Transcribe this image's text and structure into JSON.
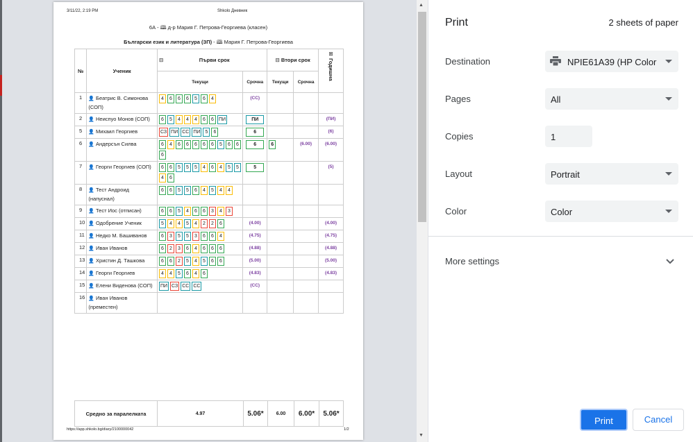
{
  "page": {
    "timestamp": "3/11/22, 2:19 PM",
    "site": "Shkolo Дневник",
    "class_line": "6А - 🕮 д-р Мария Г. Петрова-Георгиева (класен)",
    "subject_bold": "Български език и литература (ЗП)",
    "subject_rest": " - 🕮 Мария Г. Петрова-Георгиева",
    "url": "https://app.shkolo.bg/diary/2100000042",
    "page_no": "1/2"
  },
  "table": {
    "col_no": "№",
    "col_student": "Ученик",
    "term1": "Първи срок",
    "term2": "Втори срок",
    "annual": "Годишна",
    "current": "Текущи",
    "term_grade": "Срочна",
    "current2": "Текущи",
    "term_grade2": "Срочна"
  },
  "rows": [
    {
      "no": "1",
      "name": "Беатрис В. Симонова (СОП)",
      "grades": [
        [
          "4",
          "#fbbc04"
        ],
        [
          "6",
          "#34a853"
        ],
        [
          "6",
          "#34a853"
        ],
        [
          "6",
          "#34a853"
        ],
        [
          "5",
          "#1a9aa6"
        ],
        [
          "6",
          "#34a853"
        ],
        [
          "4",
          "#fbbc04"
        ]
      ],
      "term": "(СС)",
      "c2": "",
      "t2": "",
      "annual": ""
    },
    {
      "no": "2",
      "name": "Неиспуо Монов (СОП)",
      "grades": [
        [
          "6",
          "#34a853"
        ],
        [
          "5",
          "#1a9aa6"
        ],
        [
          "4",
          "#fbbc04"
        ],
        [
          "4",
          "#fbbc04"
        ],
        [
          "4",
          "#fbbc04"
        ],
        [
          "6",
          "#34a853"
        ],
        [
          "6",
          "#34a853"
        ],
        [
          "ПИ",
          "#1a9aa6"
        ]
      ],
      "term": "ПИ",
      "c2": "",
      "t2": "",
      "annual": "(ПИ)"
    },
    {
      "no": "5",
      "name": "Михаил Георгиев",
      "grades": [
        [
          "СЗ",
          "#ea4335"
        ],
        [
          "ПИ",
          "#1a9aa6"
        ],
        [
          "СС",
          "#1a9aa6"
        ],
        [
          "ПИ",
          "#1a9aa6"
        ],
        [
          "5",
          "#1a9aa6"
        ],
        [
          "6",
          "#34a853"
        ]
      ],
      "term": "6",
      "c2": "",
      "t2": "",
      "annual": "(6)"
    },
    {
      "no": "6",
      "name": "Андерсън Силва",
      "grades": [
        [
          "6",
          "#34a853"
        ],
        [
          "4",
          "#fbbc04"
        ],
        [
          "6",
          "#34a853"
        ],
        [
          "6",
          "#34a853"
        ],
        [
          "6",
          "#34a853"
        ],
        [
          "6",
          "#34a853"
        ],
        [
          "6",
          "#34a853"
        ],
        [
          "5",
          "#1a9aa6"
        ],
        [
          "6",
          "#34a853"
        ],
        [
          "6",
          "#34a853"
        ],
        [
          "6",
          "#34a853"
        ]
      ],
      "term": "6",
      "c2": "6",
      "t2": "(6.00)",
      "annual": "(6.00)"
    },
    {
      "no": "7",
      "name": "Георги Георгиев (СОП)",
      "grades": [
        [
          "6",
          "#34a853"
        ],
        [
          "6",
          "#34a853"
        ],
        [
          "5",
          "#1a9aa6"
        ],
        [
          "5",
          "#1a9aa6"
        ],
        [
          "5",
          "#1a9aa6"
        ],
        [
          "4",
          "#fbbc04"
        ],
        [
          "6",
          "#34a853"
        ],
        [
          "4",
          "#fbbc04"
        ],
        [
          "5",
          "#1a9aa6"
        ],
        [
          "5",
          "#1a9aa6"
        ],
        [
          "4",
          "#fbbc04"
        ],
        [
          "6",
          "#34a853"
        ]
      ],
      "term": "5",
      "c2": "",
      "t2": "",
      "annual": "(5)"
    },
    {
      "no": "8",
      "name": "Тест Андроид (напуснал)",
      "grades": [
        [
          "6",
          "#34a853"
        ],
        [
          "6",
          "#34a853"
        ],
        [
          "5",
          "#1a9aa6"
        ],
        [
          "5",
          "#1a9aa6"
        ],
        [
          "6",
          "#34a853"
        ],
        [
          "4",
          "#fbbc04"
        ],
        [
          "5",
          "#1a9aa6"
        ],
        [
          "4",
          "#fbbc04"
        ],
        [
          "4",
          "#fbbc04"
        ]
      ],
      "term": "",
      "c2": "",
      "t2": "",
      "annual": ""
    },
    {
      "no": "9",
      "name": "Тест Иос (отписан)",
      "grades": [
        [
          "6",
          "#34a853"
        ],
        [
          "6",
          "#34a853"
        ],
        [
          "5",
          "#1a9aa6"
        ],
        [
          "4",
          "#fbbc04"
        ],
        [
          "6",
          "#34a853"
        ],
        [
          "6",
          "#34a853"
        ],
        [
          "3",
          "#ea4335"
        ],
        [
          "4",
          "#fbbc04"
        ],
        [
          "3",
          "#ea4335"
        ]
      ],
      "term": "",
      "c2": "",
      "t2": "",
      "annual": ""
    },
    {
      "no": "10",
      "name": "Одобрение Ученик",
      "grades": [
        [
          "5",
          "#1a9aa6"
        ],
        [
          "4",
          "#fbbc04"
        ],
        [
          "4",
          "#fbbc04"
        ],
        [
          "5",
          "#1a9aa6"
        ],
        [
          "4",
          "#fbbc04"
        ],
        [
          "2",
          "#ea4335"
        ],
        [
          "2",
          "#ea4335"
        ],
        [
          "6",
          "#34a853"
        ]
      ],
      "term": "(4.00)",
      "c2": "",
      "t2": "",
      "annual": "(4.00)"
    },
    {
      "no": "11",
      "name": "Недко М. Башиванов",
      "grades": [
        [
          "6",
          "#34a853"
        ],
        [
          "3",
          "#ea4335"
        ],
        [
          "5",
          "#1a9aa6"
        ],
        [
          "5",
          "#1a9aa6"
        ],
        [
          "3",
          "#ea4335"
        ],
        [
          "6",
          "#34a853"
        ],
        [
          "6",
          "#34a853"
        ],
        [
          "4",
          "#fbbc04"
        ]
      ],
      "term": "(4.75)",
      "c2": "",
      "t2": "",
      "annual": "(4.75)"
    },
    {
      "no": "12",
      "name": "Иван Иванов",
      "grades": [
        [
          "6",
          "#34a853"
        ],
        [
          "2",
          "#ea4335"
        ],
        [
          "3",
          "#ea4335"
        ],
        [
          "6",
          "#34a853"
        ],
        [
          "4",
          "#fbbc04"
        ],
        [
          "6",
          "#34a853"
        ],
        [
          "6",
          "#34a853"
        ],
        [
          "6",
          "#34a853"
        ]
      ],
      "term": "(4.88)",
      "c2": "",
      "t2": "",
      "annual": "(4.88)"
    },
    {
      "no": "13",
      "name": "Христин Д. Ташкова",
      "grades": [
        [
          "6",
          "#34a853"
        ],
        [
          "6",
          "#34a853"
        ],
        [
          "2",
          "#ea4335"
        ],
        [
          "5",
          "#1a9aa6"
        ],
        [
          "4",
          "#fbbc04"
        ],
        [
          "5",
          "#1a9aa6"
        ],
        [
          "6",
          "#34a853"
        ],
        [
          "6",
          "#34a853"
        ]
      ],
      "term": "(5.00)",
      "c2": "",
      "t2": "",
      "annual": "(5.00)"
    },
    {
      "no": "14",
      "name": "Георги Георгиев",
      "grades": [
        [
          "4",
          "#fbbc04"
        ],
        [
          "4",
          "#fbbc04"
        ],
        [
          "5",
          "#1a9aa6"
        ],
        [
          "6",
          "#34a853"
        ],
        [
          "4",
          "#fbbc04"
        ],
        [
          "6",
          "#34a853"
        ]
      ],
      "term": "(4.83)",
      "c2": "",
      "t2": "",
      "annual": "(4.83)"
    },
    {
      "no": "15",
      "name": "Елени Виденова (СОП)",
      "grades": [
        [
          "ПИ",
          "#1a9aa6"
        ],
        [
          "СЗ",
          "#ea4335"
        ],
        [
          "СС",
          "#1a9aa6"
        ],
        [
          "СС",
          "#1a9aa6"
        ]
      ],
      "term": "(СС)",
      "c2": "",
      "t2": "",
      "annual": ""
    },
    {
      "no": "16",
      "name": "Иван Иванов (преместен)",
      "grades": [],
      "term": "",
      "c2": "",
      "t2": "",
      "annual": ""
    }
  ],
  "footer": {
    "label": "Средно за паралелката",
    "avg1": "4.97",
    "term1": "5.06*",
    "avg2": "6.00",
    "term2": "6.00*",
    "annual": "5.06*"
  },
  "panel": {
    "title": "Print",
    "sheets": "2 sheets of paper",
    "destination_label": "Destination",
    "destination_value": "NPIE61A39 (HP Color",
    "pages_label": "Pages",
    "pages_value": "All",
    "copies_label": "Copies",
    "copies_value": "1",
    "layout_label": "Layout",
    "layout_value": "Portrait",
    "color_label": "Color",
    "color_value": "Color",
    "more_settings": "More settings",
    "print": "Print",
    "cancel": "Cancel"
  }
}
